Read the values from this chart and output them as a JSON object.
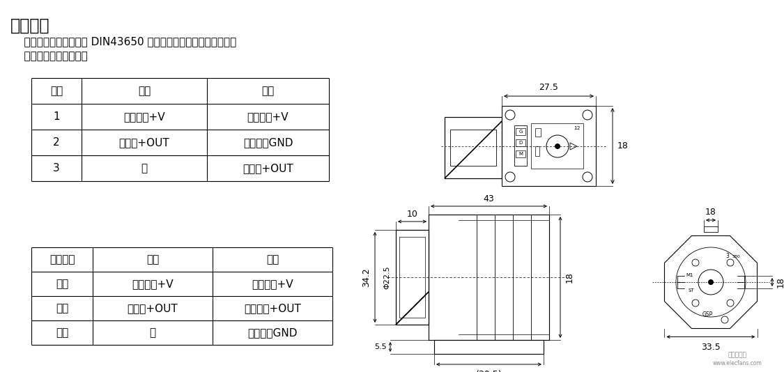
{
  "title": "电气连接",
  "desc1": "    变送器与外部电路通过 DIN43650 进口防爆插头座进行电气连接。",
  "desc2": "    插脚的端子定义如下：",
  "table1_header": [
    "插脚",
    "二线",
    "三线"
  ],
  "table1_rows": [
    [
      "1",
      "电源正：+V",
      "正电源：+V"
    ],
    [
      "2",
      "信号：+OUT",
      "公共端：GND"
    ],
    [
      "3",
      "空",
      "信号：+OUT"
    ]
  ],
  "table2_header": [
    "电缆颜色",
    "二线",
    "三线"
  ],
  "table2_rows": [
    [
      "黑色",
      "电源正：+V",
      "电源正：+V"
    ],
    [
      "红色",
      "信号：+OUT",
      "输出正：+OUT"
    ],
    [
      "白色",
      "空",
      "公共端：GND"
    ]
  ],
  "bg_color": "#ffffff",
  "text_color": "#000000"
}
